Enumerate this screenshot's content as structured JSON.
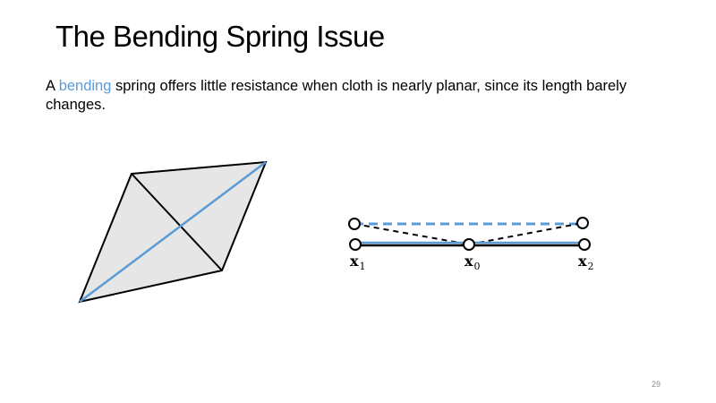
{
  "slide": {
    "title": "The Bending Spring Issue",
    "body_prefix": "A ",
    "body_highlight": "bending",
    "body_suffix": " spring offers little resistance when cloth is nearly planar, since its length barely changes.",
    "page_number": "29"
  },
  "right_diagram": {
    "labels": [
      {
        "base": "x",
        "sub": "1"
      },
      {
        "base": "x",
        "sub": "0"
      },
      {
        "base": "x",
        "sub": "2"
      }
    ]
  },
  "colors": {
    "accent": "#5b9bd5",
    "face_fill": "#e6e6e6",
    "stroke": "#000000"
  }
}
